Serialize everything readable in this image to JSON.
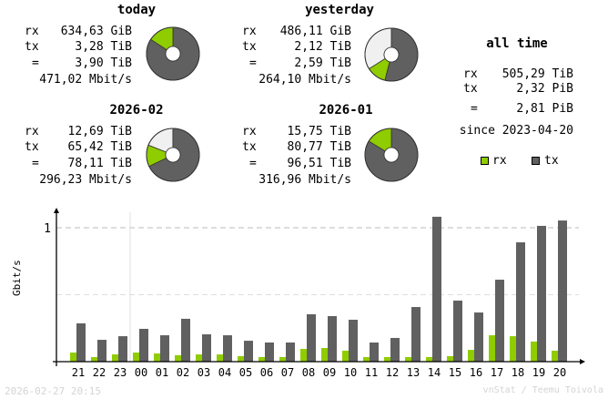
{
  "colors": {
    "rx": "#8fcc00",
    "tx": "#606060",
    "unused": "#f0f0f0",
    "grid": "#bbbbbb",
    "footer": "#d4d4d4"
  },
  "labels": {
    "rx": "rx",
    "tx": "tx",
    "total": "="
  },
  "summaries": [
    {
      "id": "today",
      "title": "today",
      "rx": "634,63 GiB",
      "tx": "3,28 TiB",
      "total": "3,90 TiB",
      "rate": "471,02 Mbit/s",
      "rx_share": 0.159,
      "filled": 1.0
    },
    {
      "id": "yesterday",
      "title": "yesterday",
      "rx": "486,11 GiB",
      "tx": "2,12 TiB",
      "total": "2,59 TiB",
      "rate": "264,10 Mbit/s",
      "rx_share": 0.183,
      "filled": 0.66
    },
    {
      "id": "month-current",
      "title": "2026-02",
      "rx": "12,69 TiB",
      "tx": "65,42 TiB",
      "total": "78,11 TiB",
      "rate": "296,23 Mbit/s",
      "rx_share": 0.162,
      "filled": 0.81
    },
    {
      "id": "month-previous",
      "title": "2026-01",
      "rx": "15,75 TiB",
      "tx": "80,77 TiB",
      "total": "96,51 TiB",
      "rate": "316,96 Mbit/s",
      "rx_share": 0.163,
      "filled": 1.0
    }
  ],
  "all_time": {
    "title": "all time",
    "rx": "505,29 TiB",
    "tx": "2,32 PiB",
    "total": "2,81 PiB",
    "since": "since 2023-04-20"
  },
  "legend": {
    "rx": "rx",
    "tx": "tx"
  },
  "footer": {
    "timestamp": "2026-02-27 20:15",
    "credit": "vnStat / Teemu Toivola"
  },
  "chart_data": {
    "type": "bar",
    "ylabel": "Gbit/s",
    "ylim": [
      0,
      1.1
    ],
    "yticks": [
      {
        "value": 1,
        "label": "1"
      }
    ],
    "halfgrid": 0.5,
    "day_boundary_after": "23",
    "categories": [
      "21",
      "22",
      "23",
      "00",
      "01",
      "02",
      "03",
      "04",
      "05",
      "06",
      "07",
      "08",
      "09",
      "10",
      "11",
      "12",
      "13",
      "14",
      "15",
      "16",
      "17",
      "18",
      "19",
      "20"
    ],
    "series": [
      {
        "name": "rx",
        "values": [
          0.068,
          0.034,
          0.054,
          0.068,
          0.061,
          0.048,
          0.054,
          0.054,
          0.041,
          0.034,
          0.034,
          0.095,
          0.102,
          0.082,
          0.034,
          0.034,
          0.034,
          0.034,
          0.041,
          0.088,
          0.197,
          0.19,
          0.15,
          0.082
        ]
      },
      {
        "name": "tx",
        "values": [
          0.286,
          0.163,
          0.19,
          0.245,
          0.197,
          0.32,
          0.204,
          0.197,
          0.156,
          0.143,
          0.143,
          0.354,
          0.34,
          0.313,
          0.143,
          0.177,
          0.408,
          1.082,
          0.456,
          0.367,
          0.612,
          0.891,
          1.014,
          1.054
        ]
      }
    ]
  }
}
